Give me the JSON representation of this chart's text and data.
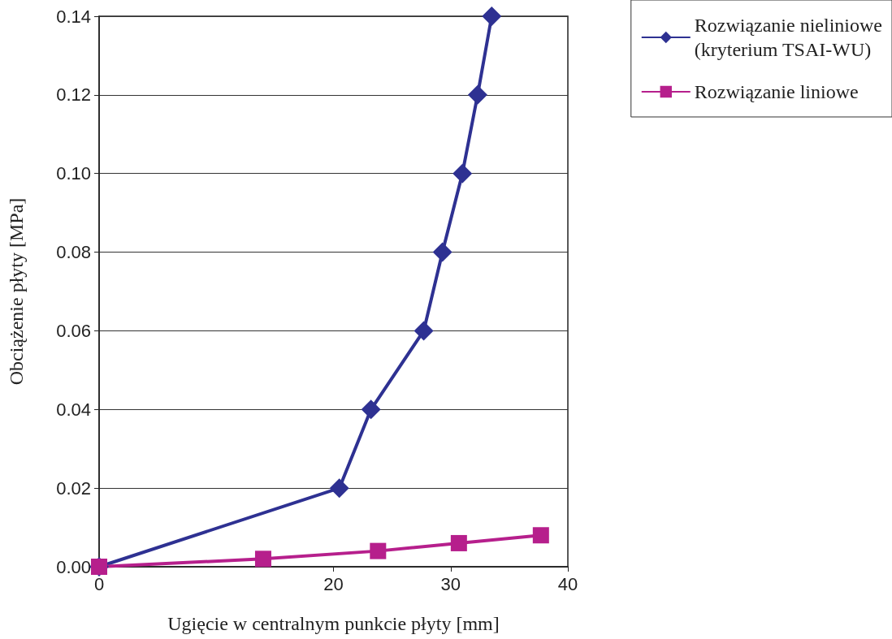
{
  "chart_data": {
    "type": "line",
    "xlabel": "Ugięcie w centralnym punkcie płyty [mm]",
    "ylabel": "Obciążenie płyty [MPa]",
    "xlim": [
      0,
      40
    ],
    "xticks": [
      0,
      20,
      30,
      40
    ],
    "ylim": [
      0,
      0.14
    ],
    "yticks": [
      {
        "value": 0,
        "label": "0.00"
      },
      {
        "value": 0.02,
        "label": "0.02"
      },
      {
        "value": 0.04,
        "label": "0.04"
      },
      {
        "value": 0.06,
        "label": "0.06"
      },
      {
        "value": 0.08,
        "label": "0.08"
      },
      {
        "value": 0.1,
        "label": "0.10"
      },
      {
        "value": 0.12,
        "label": "0.12"
      },
      {
        "value": 0.14,
        "label": "0.14"
      }
    ],
    "grid": "y",
    "legend": "top right",
    "line_style": "solid",
    "series": [
      {
        "name": "Rozwiązanie nieliniowe\n(kryterium TSAI-WU)",
        "color": "#2e3192",
        "marker": "diamond",
        "x": [
          0,
          20.5,
          23.2,
          27.7,
          29.3,
          31.0,
          32.3,
          33.5
        ],
        "values": [
          0,
          0.02,
          0.04,
          0.06,
          0.08,
          0.1,
          0.12,
          0.14
        ]
      },
      {
        "name": "Rozwiązanie liniowe",
        "color": "#b61f8c",
        "marker": "square",
        "x": [
          0,
          14.0,
          23.8,
          30.7,
          37.7
        ],
        "values": [
          0,
          0.002,
          0.004,
          0.006,
          0.008
        ]
      }
    ]
  }
}
